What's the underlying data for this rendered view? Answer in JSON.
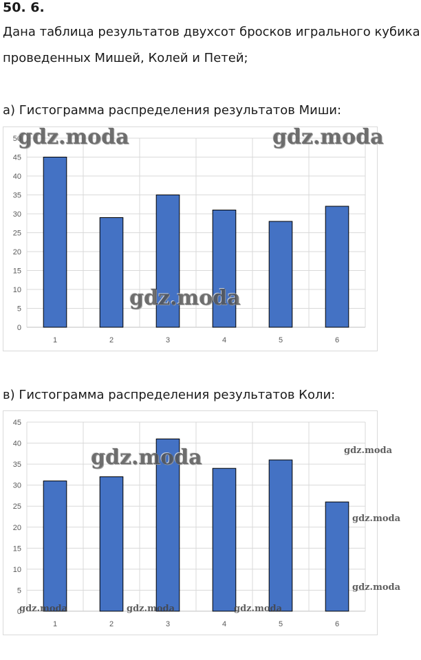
{
  "problem": {
    "number": "50. 6.",
    "intro_line1": "Дана таблица результатов двухсот бросков игрального кубика,",
    "intro_line2": "проведенных Мишей, Колей и Петей;"
  },
  "watermark": "gdz.moda",
  "colors": {
    "bar": "#4472c4",
    "bar_stroke": "#000000",
    "grid": "#d9d9d9"
  },
  "chart_data": [
    {
      "type": "bar",
      "caption": "а) Гистограмма распределения результатов Миши:",
      "categories": [
        "1",
        "2",
        "3",
        "4",
        "5",
        "6"
      ],
      "values": [
        45,
        29,
        35,
        31,
        28,
        32
      ],
      "ylim": [
        0,
        50
      ],
      "yticks": [
        0,
        5,
        10,
        15,
        20,
        25,
        30,
        35,
        40,
        45,
        50
      ],
      "grid": true,
      "title": "",
      "xlabel": "",
      "ylabel": ""
    },
    {
      "type": "bar",
      "caption": "в) Гистограмма распределения результатов Коли:",
      "categories": [
        "1",
        "2",
        "3",
        "4",
        "5",
        "6"
      ],
      "values": [
        31,
        32,
        41,
        34,
        36,
        26
      ],
      "ylim": [
        0,
        45
      ],
      "yticks": [
        0,
        5,
        10,
        15,
        20,
        25,
        30,
        35,
        40,
        45
      ],
      "grid": true,
      "title": "",
      "xlabel": "",
      "ylabel": ""
    }
  ]
}
